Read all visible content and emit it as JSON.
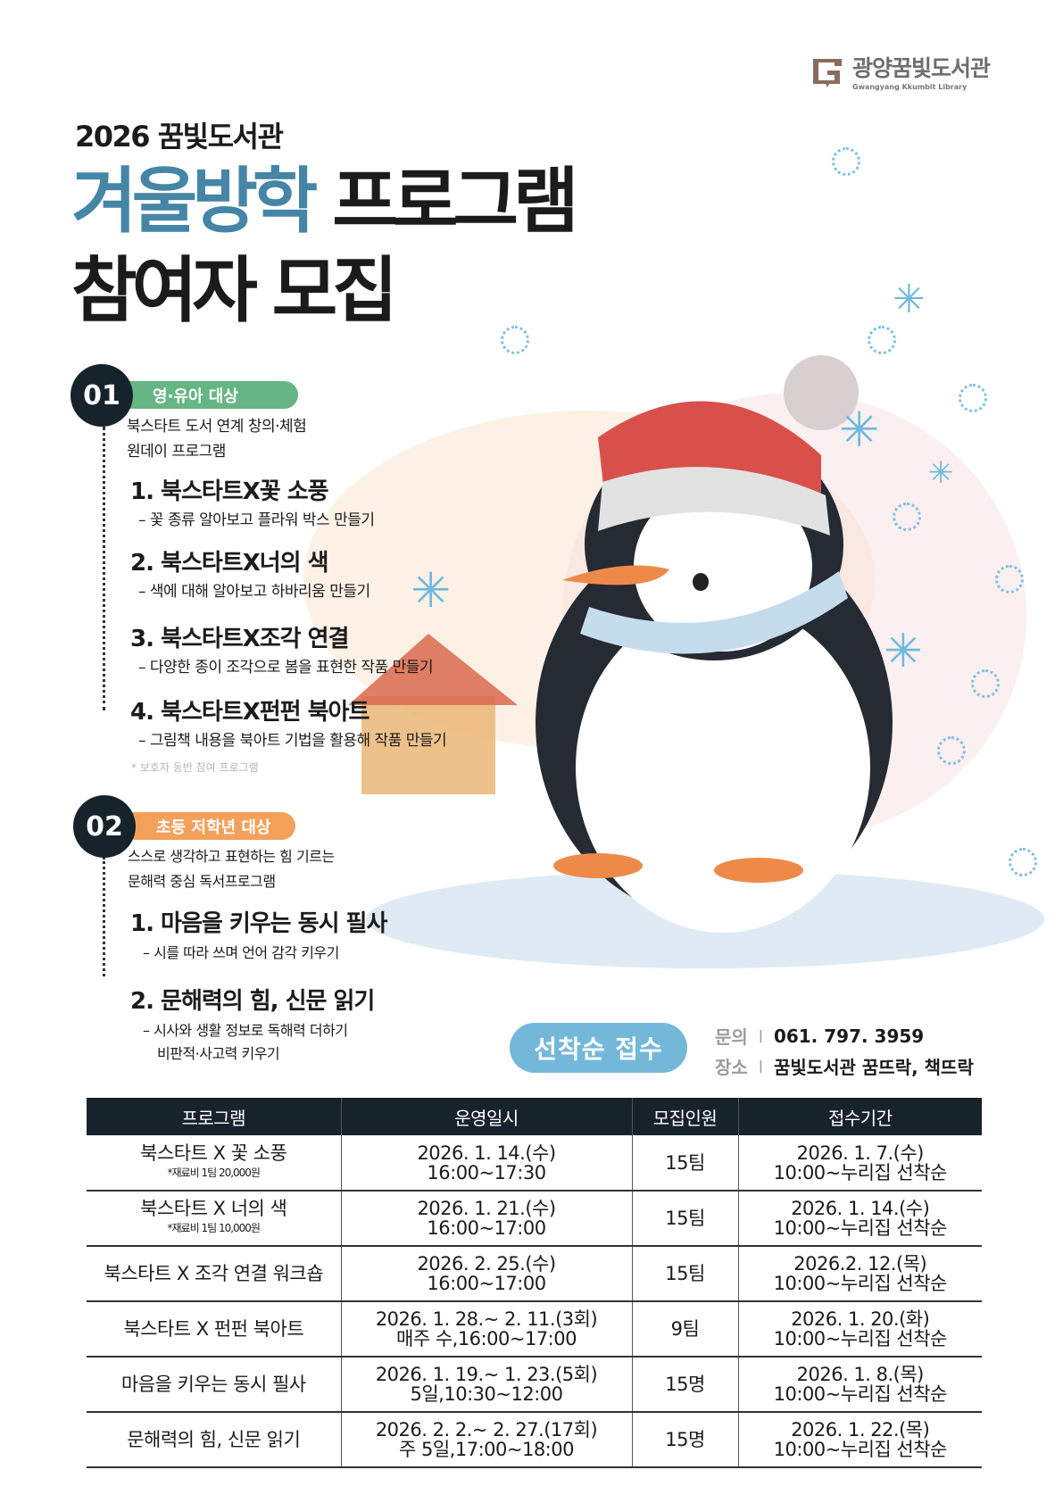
{
  "logo": {
    "name": "광양꿈빛도서관",
    "english": "Gwangyang Kkumbit Library"
  },
  "header": {
    "subtitle": "2026 꿈빛도서관",
    "title_highlight": "겨울방학",
    "title_rest": "프로그램",
    "title_line2": "참여자 모집"
  },
  "section1": {
    "number": "01",
    "badge": "영·유아 대상",
    "badge_color": "#66b685",
    "desc": [
      "북스타트 도서 연계 창의·체험",
      "원데이 프로그램"
    ],
    "items": [
      {
        "title": "1. 북스타트X꽃 소풍",
        "sub": "– 꽃 종류 알아보고 플라워 박스 만들기"
      },
      {
        "title": "2. 북스타트X너의 색",
        "sub": "– 색에 대해 알아보고 하바리움 만들기"
      },
      {
        "title": "3. 북스타트X조각 연결",
        "sub": "– 다양한 종이 조각으로 봄을 표현한 작품 만들기"
      },
      {
        "title": "4. 북스타트X펀펀 북아트",
        "sub": "– 그림책 내용을 북아트 기법을 활용해 작품 만들기"
      }
    ],
    "note": "* 보호자 동반 참여 프로그램"
  },
  "section2": {
    "number": "02",
    "badge": "초등 저학년 대상",
    "badge_color": "#f3a15a",
    "desc": [
      "스스로 생각하고 표현하는 힘 기르는",
      "문해력 중심 독서프로그램"
    ],
    "items": [
      {
        "title": "1. 마음을 키우는 동시 필사",
        "sub": "– 시를 따라 쓰며 언어 감각 키우기"
      },
      {
        "title": "2. 문해력의 힘, 신문 읽기",
        "sub": "– 시사와 생활 정보로 독해력 더하기",
        "sub2": "비판적·사고력 키우기"
      }
    ]
  },
  "cta": {
    "label": "선착순 접수",
    "color": "#74b8d9"
  },
  "contact": {
    "inquiry_label": "문의",
    "inquiry_value": "061. 797. 3959",
    "place_label": "장소",
    "place_value": "꿈빛도서관 꿈뜨락, 책뜨락"
  },
  "table": {
    "headers": [
      "프로그램",
      "운영일시",
      "모집인원",
      "접수기간"
    ],
    "rows": [
      {
        "program": "북스타트 X 꽃 소풍",
        "fee": "*재료비 1팀 20,000원",
        "date1": "2026. 1. 14.(수)",
        "date2": "16:00~17:30",
        "count": "15팀",
        "reg1": "2026. 1. 7.(수)",
        "reg2": "10:00~누리집 선착순"
      },
      {
        "program": "북스타트 X 너의 색",
        "fee": "*재료비 1팀 10,000원",
        "date1": "2026. 1. 21.(수)",
        "date2": "16:00~17:00",
        "count": "15팀",
        "reg1": "2026. 1. 14.(수)",
        "reg2": "10:00~누리집 선착순"
      },
      {
        "program": "북스타트 X 조각 연결 워크숍",
        "date1": "2026. 2. 25.(수)",
        "date2": "16:00~17:00",
        "count": "15팀",
        "reg1": "2026.2. 12.(목)",
        "reg2": "10:00~누리집 선착순"
      },
      {
        "program": "북스타트 X 펀펀 북아트",
        "date1": "2026. 1. 28.~ 2. 11.(3회)",
        "date2": "매주 수,16:00~17:00",
        "count": "9팀",
        "reg1": "2026. 1. 20.(화)",
        "reg2": "10:00~누리집 선착순"
      },
      {
        "program": "마음을 키우는 동시 필사",
        "date1": "2026. 1. 19.~ 1. 23.(5회)",
        "date2": "5일,10:30~12:00",
        "count": "15명",
        "reg1": "2026. 1. 8.(목)",
        "reg2": "10:00~누리집 선착순"
      },
      {
        "program": "문해력의 힘, 신문 읽기",
        "date1": "2026. 2. 2.~ 2. 27.(17회)",
        "date2": "주 5일,17:00~18:00",
        "count": "15명",
        "reg1": "2026. 1. 22.(목)",
        "reg2": "10:00~누리집 선착순"
      }
    ]
  }
}
